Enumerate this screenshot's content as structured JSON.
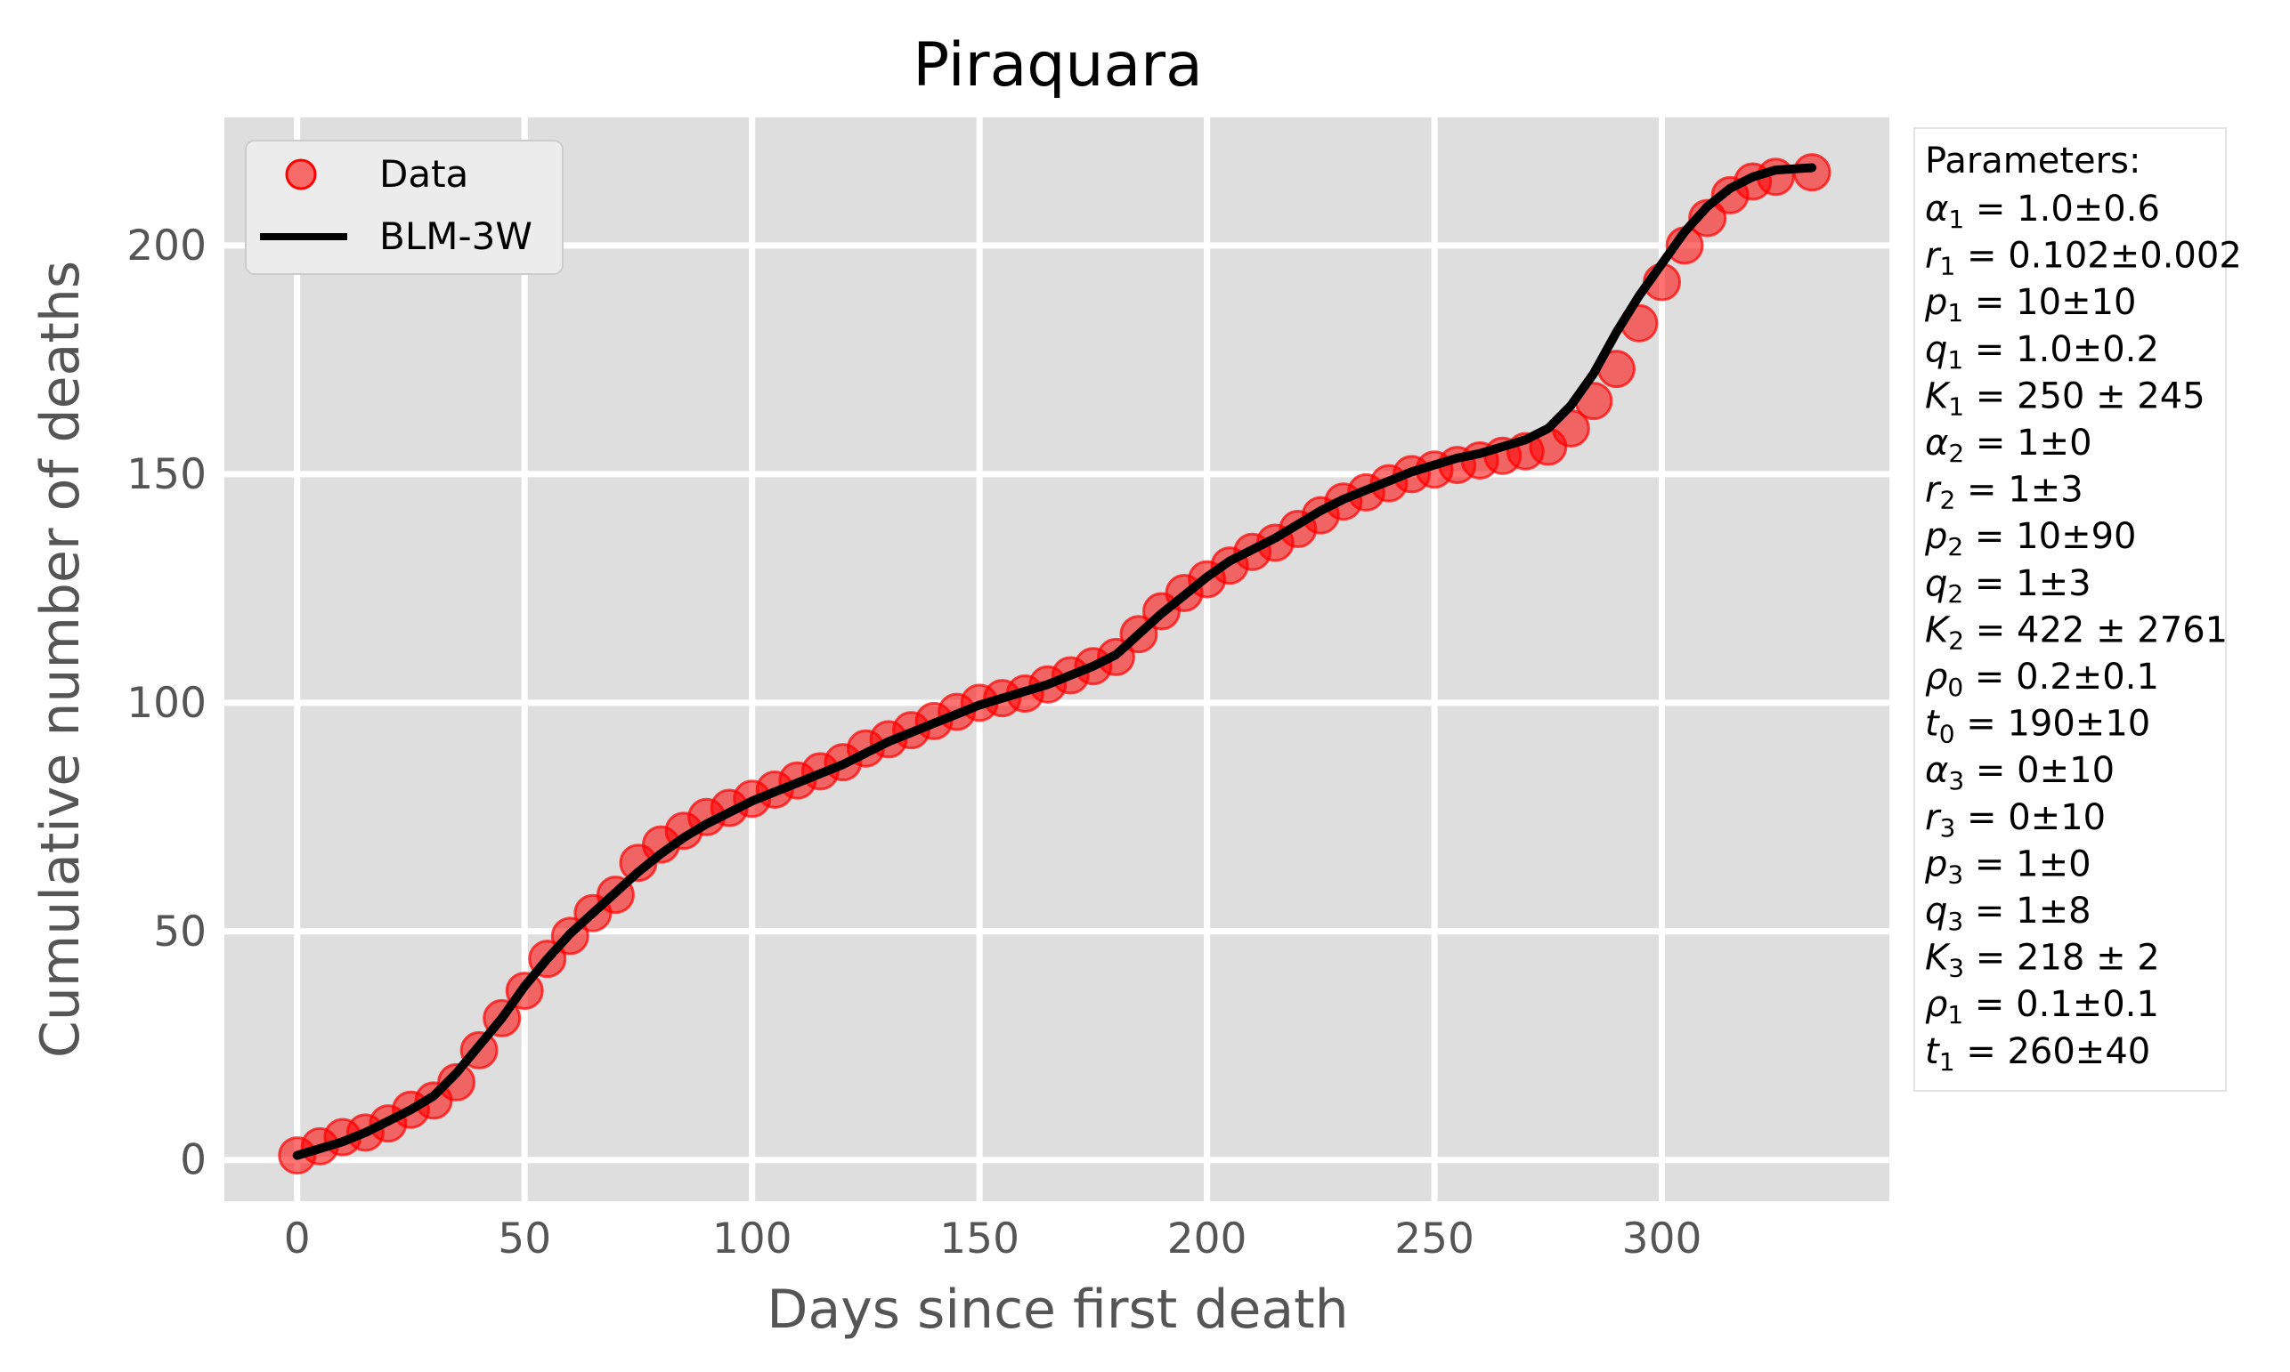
{
  "chart_data": {
    "type": "line",
    "title": "Piraquara",
    "xlabel": "Days since first death",
    "ylabel": "Cumulative number of deaths",
    "xlim": [
      -16,
      350
    ],
    "ylim": [
      -9,
      228
    ],
    "x_ticks": [
      0,
      50,
      100,
      150,
      200,
      250,
      300
    ],
    "y_ticks": [
      0,
      50,
      100,
      150,
      200
    ],
    "grid": true,
    "legend_placement": "top-left",
    "colors": {
      "data": "#ff0000",
      "fit": "#000000",
      "background": "#dedede",
      "grid": "#ffffff"
    },
    "series": [
      {
        "name": "Data",
        "style": "points",
        "x": [
          0,
          5,
          10,
          15,
          20,
          25,
          30,
          35,
          40,
          45,
          50,
          55,
          60,
          65,
          70,
          75,
          80,
          85,
          90,
          95,
          100,
          105,
          110,
          115,
          120,
          125,
          130,
          135,
          140,
          145,
          150,
          155,
          160,
          165,
          170,
          175,
          180,
          185,
          190,
          195,
          200,
          205,
          210,
          215,
          220,
          225,
          230,
          235,
          240,
          245,
          250,
          255,
          260,
          265,
          270,
          275,
          280,
          285,
          290,
          295,
          300,
          305,
          310,
          315,
          320,
          325,
          333
        ],
        "y": [
          1,
          3,
          5,
          6,
          8,
          11,
          13,
          17,
          24,
          31,
          37,
          44,
          49,
          54,
          58,
          65,
          69,
          72,
          75,
          77,
          79,
          81,
          83,
          85,
          87,
          90,
          92,
          94,
          96,
          98,
          100,
          101,
          102,
          104,
          106,
          108,
          110,
          115,
          120,
          124,
          127,
          130,
          133,
          135,
          138,
          141,
          144,
          146,
          148,
          150,
          151,
          152,
          153,
          154,
          155,
          156,
          160,
          166,
          173,
          183,
          192,
          200,
          206,
          211,
          214,
          215,
          216
        ]
      },
      {
        "name": "BLM-3W",
        "style": "line",
        "x": [
          0,
          5,
          10,
          15,
          20,
          25,
          30,
          35,
          40,
          45,
          50,
          55,
          60,
          65,
          70,
          75,
          80,
          85,
          90,
          95,
          100,
          105,
          110,
          115,
          120,
          125,
          130,
          135,
          140,
          145,
          150,
          155,
          160,
          165,
          170,
          175,
          180,
          185,
          190,
          195,
          200,
          205,
          210,
          215,
          220,
          225,
          230,
          235,
          240,
          245,
          250,
          255,
          260,
          265,
          270,
          275,
          280,
          285,
          290,
          295,
          300,
          305,
          310,
          315,
          320,
          325,
          333
        ],
        "y": [
          1,
          2.5,
          4,
          6,
          8.5,
          11,
          14,
          19,
          25,
          31,
          38,
          44,
          49.5,
          54,
          58.5,
          63,
          67,
          70.5,
          73.5,
          76,
          78.5,
          80.5,
          82.5,
          84.5,
          86.5,
          89,
          91.5,
          93.5,
          95.5,
          97.5,
          99.5,
          101,
          102.5,
          104,
          106,
          108,
          110.5,
          115,
          119.5,
          123.5,
          127.5,
          131,
          133.5,
          136,
          139,
          142,
          144.5,
          146.5,
          148.5,
          150.5,
          152,
          153.5,
          154.5,
          156,
          157.5,
          160,
          165,
          172,
          181,
          189,
          196,
          203,
          208.5,
          212.5,
          215,
          216.5,
          217
        ]
      }
    ],
    "parameters": {
      "heading": "Parameters:",
      "items": [
        {
          "sym": "α",
          "sub": "1",
          "val": "1.0±0.6"
        },
        {
          "sym": "r",
          "sub": "1",
          "val": "0.102±0.002"
        },
        {
          "sym": "p",
          "sub": "1",
          "val": "10±10"
        },
        {
          "sym": "q",
          "sub": "1",
          "val": "1.0±0.2"
        },
        {
          "sym": "K",
          "sub": "1",
          "val": "250 ± 245"
        },
        {
          "sym": "α",
          "sub": "2",
          "val": "1±0"
        },
        {
          "sym": "r",
          "sub": "2",
          "val": "1±3"
        },
        {
          "sym": "p",
          "sub": "2",
          "val": "10±90"
        },
        {
          "sym": "q",
          "sub": "2",
          "val": "1±3"
        },
        {
          "sym": "K",
          "sub": "2",
          "val": "422 ± 2761"
        },
        {
          "sym": "ρ",
          "sub": "0",
          "val": "0.2±0.1"
        },
        {
          "sym": "t",
          "sub": "0",
          "val": "190±10"
        },
        {
          "sym": "α",
          "sub": "3",
          "val": "0±10"
        },
        {
          "sym": "r",
          "sub": "3",
          "val": "0±10"
        },
        {
          "sym": "p",
          "sub": "3",
          "val": "1±0"
        },
        {
          "sym": "q",
          "sub": "3",
          "val": "1±8"
        },
        {
          "sym": "K",
          "sub": "3",
          "val": "218 ± 2"
        },
        {
          "sym": "ρ",
          "sub": "1",
          "val": "0.1±0.1"
        },
        {
          "sym": "t",
          "sub": "1",
          "val": "260±40"
        }
      ]
    }
  }
}
